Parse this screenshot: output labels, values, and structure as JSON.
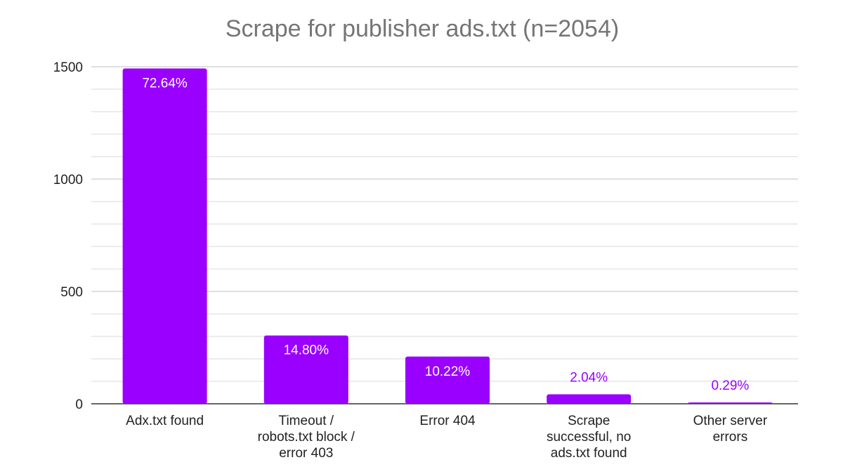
{
  "chart_data": {
    "type": "bar",
    "title": "Scrape for publisher ads.txt (n=2054)",
    "xlabel": "",
    "ylabel": "",
    "ylim": [
      0,
      1500
    ],
    "yticks": [
      0,
      500,
      1000,
      1500
    ],
    "minor_grid_step": 100,
    "grid": true,
    "categories": [
      [
        "Adx.txt found"
      ],
      [
        "Timeout /",
        "robots.txt block /",
        "error 403"
      ],
      [
        "Error 404"
      ],
      [
        "Scrape",
        "successful, no",
        "ads.txt found"
      ],
      [
        "Other server",
        "errors"
      ]
    ],
    "values": [
      1492,
      304,
      210,
      42,
      6
    ],
    "data_labels": [
      "72.64%",
      "14.80%",
      "10.22%",
      "2.04%",
      "0.29%"
    ],
    "colors": {
      "bar": "#9900ff",
      "label_inside": "#ffffff",
      "label_outside": "#9900ff",
      "title": "#757575",
      "grid": "#d9d9d9",
      "axis": "#333333"
    }
  }
}
